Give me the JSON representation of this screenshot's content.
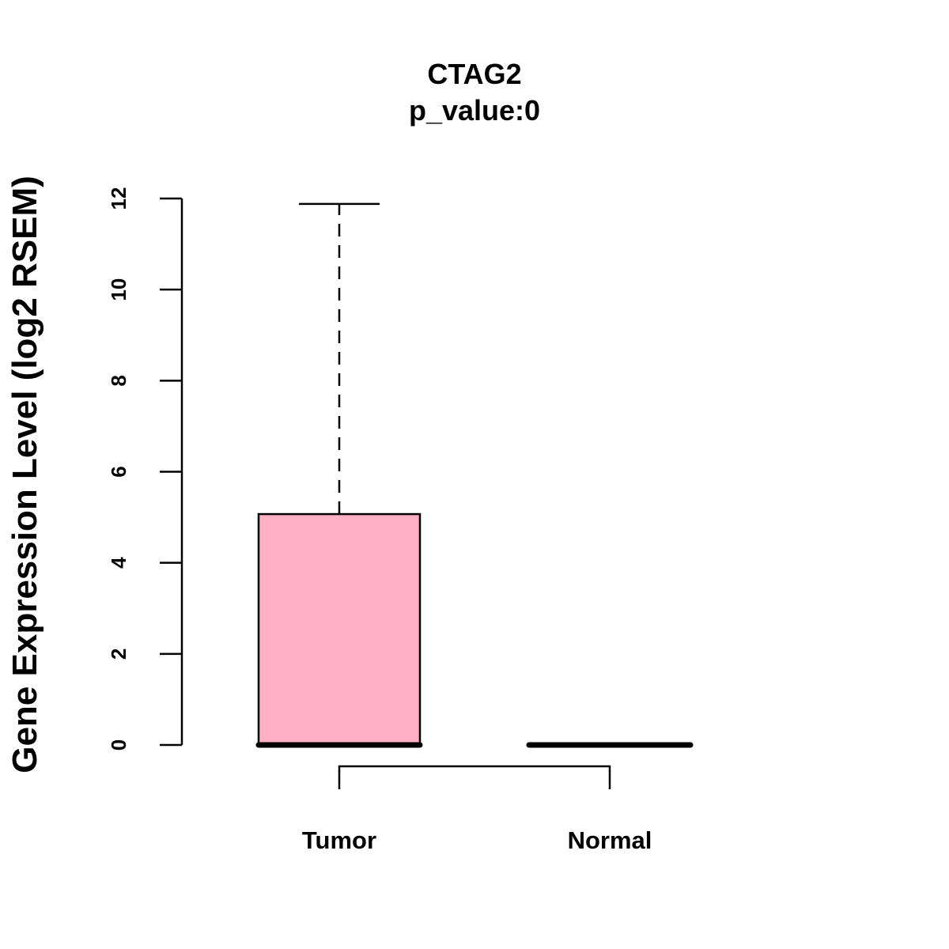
{
  "chart_data": {
    "type": "box",
    "title": "CTAG2",
    "subtitle": "p_value:0",
    "ylabel": "Gene Expression Level (log2 RSEM)",
    "xlabel": "",
    "ylim": [
      0,
      12
    ],
    "yticks": [
      0,
      2,
      4,
      6,
      8,
      10,
      12
    ],
    "ytick_labels": [
      "0",
      "2",
      "4",
      "6",
      "8",
      "10",
      "12"
    ],
    "categories": [
      "Tumor",
      "Normal"
    ],
    "boxes": [
      {
        "category": "Tumor",
        "min": 0,
        "q1": 0,
        "median": 0,
        "q3": 5.07,
        "max": 11.88,
        "fill": "#FFB0C2"
      },
      {
        "category": "Normal",
        "min": 0,
        "q1": 0,
        "median": 0,
        "q3": 0,
        "max": 0,
        "fill": "#FFB0C2"
      }
    ],
    "comparison_bracket": {
      "between": [
        "Tumor",
        "Normal"
      ]
    },
    "grid": false,
    "legend": "none"
  }
}
